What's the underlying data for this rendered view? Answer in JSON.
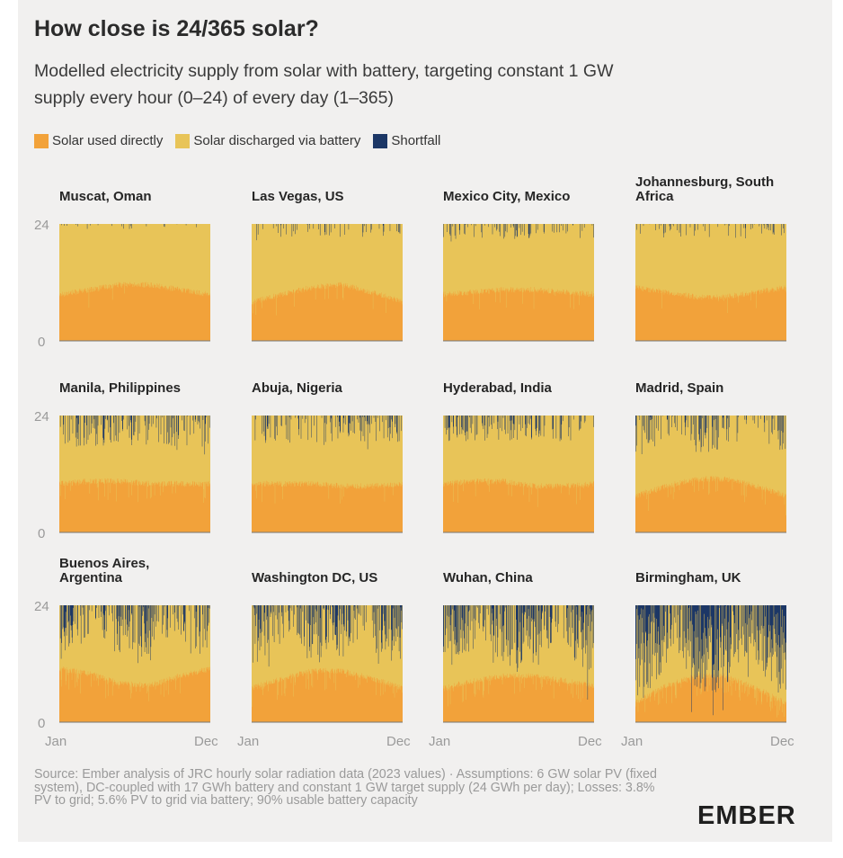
{
  "header": {
    "title": "How close is 24/365 solar?",
    "subtitle_line1": "Modelled electricity supply from solar with battery, targeting constant 1 GW",
    "subtitle_line2": "supply every hour (0–24) of every day (1–365)"
  },
  "legend": [
    {
      "label": "Solar used directly",
      "color": "#f2a23a"
    },
    {
      "label": "Solar discharged via battery",
      "color": "#e8c458"
    },
    {
      "label": "Shortfall",
      "color": "#1c3766"
    }
  ],
  "footer": {
    "source": "Source: Ember analysis of JRC hourly solar radiation data (2023 values) · Assumptions: 6 GW solar PV (fixed system), DC-coupled with 17 GWh battery and constant 1 GW target supply (24 GWh per day); Losses: 3.8% PV to grid; 5.6% PV to grid via battery; 90% usable battery capacity",
    "logo": "EMBER"
  },
  "chart_data": {
    "type": "area",
    "x": "day of year (1–365)",
    "y_range": [
      0,
      24
    ],
    "y_unit": "hours (0–24)",
    "y_ticks": [
      "0",
      "24"
    ],
    "x_ticks": [
      "Jan",
      "Dec"
    ],
    "series_names": [
      "Solar used directly",
      "Solar discharged via battery",
      "Shortfall"
    ],
    "panels": [
      {
        "name": "Muscat, Oman",
        "direct_hours": [
          9.5,
          10.5,
          11.5,
          11.5,
          10.5,
          9.5
        ],
        "shortfall_level": 0.05
      },
      {
        "name": "Las Vegas, US",
        "direct_hours": [
          8.0,
          9.5,
          11.0,
          11.5,
          10.0,
          8.0
        ],
        "shortfall_level": 0.12
      },
      {
        "name": "Mexico City, Mexico",
        "direct_hours": [
          9.5,
          10.0,
          10.5,
          10.5,
          10.0,
          9.5
        ],
        "shortfall_level": 0.14
      },
      {
        "name": "Johannesburg, South Africa",
        "direct_hours": [
          11.0,
          10.0,
          9.0,
          9.0,
          10.0,
          11.0
        ],
        "shortfall_level": 0.13
      },
      {
        "name": "Manila, Philippines",
        "direct_hours": [
          10.0,
          10.5,
          10.5,
          10.0,
          10.0,
          10.0
        ],
        "shortfall_level": 0.3
      },
      {
        "name": "Abuja, Nigeria",
        "direct_hours": [
          10.0,
          10.0,
          10.0,
          9.5,
          9.5,
          10.0
        ],
        "shortfall_level": 0.26
      },
      {
        "name": "Hyderabad, India",
        "direct_hours": [
          10.0,
          10.5,
          10.5,
          9.5,
          9.5,
          10.0
        ],
        "shortfall_level": 0.24
      },
      {
        "name": "Madrid, Spain",
        "direct_hours": [
          7.5,
          9.5,
          11.0,
          11.0,
          9.5,
          7.5
        ],
        "shortfall_level": 0.34
      },
      {
        "name": "Buenos Aires, Argentina",
        "direct_hours": [
          11.0,
          10.0,
          8.0,
          7.5,
          9.5,
          11.0
        ],
        "shortfall_level": 0.5
      },
      {
        "name": "Washington DC, US",
        "direct_hours": [
          7.0,
          9.0,
          10.5,
          10.5,
          9.0,
          7.0
        ],
        "shortfall_level": 0.55
      },
      {
        "name": "Wuhan, China",
        "direct_hours": [
          7.0,
          8.5,
          9.5,
          9.5,
          8.5,
          7.5
        ],
        "shortfall_level": 0.62
      },
      {
        "name": "Birmingham, UK",
        "direct_hours": [
          4.0,
          7.5,
          9.5,
          9.5,
          7.0,
          4.0
        ],
        "shortfall_level": 0.85
      }
    ]
  }
}
